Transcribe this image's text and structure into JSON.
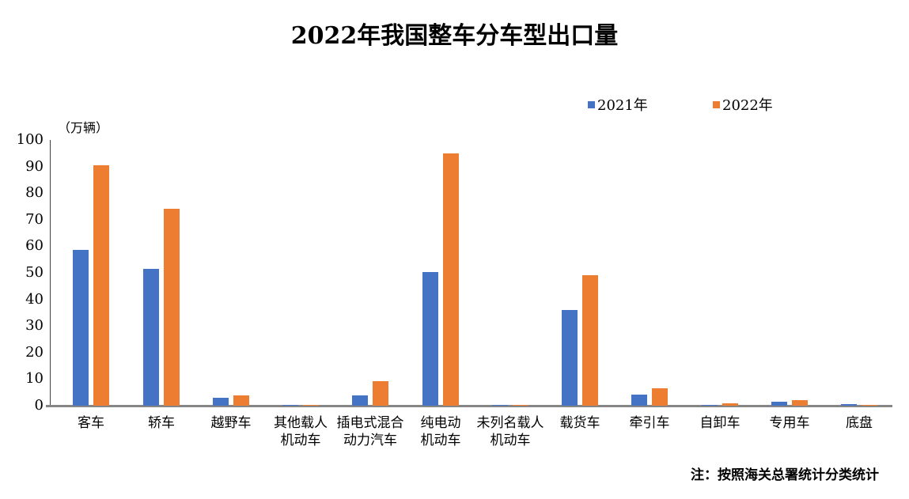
{
  "title": "2022年我国整车分车型出口量",
  "unit_label": "（万辆）",
  "footnote": "注：按照海关总署统计分类统计",
  "colors": {
    "series_2021": "#4472C4",
    "series_2022": "#ED7D31",
    "axis_line": "#404040",
    "baseline": "#868686",
    "text": "#000000",
    "background": "#FFFFFF"
  },
  "legend": [
    {
      "label": "2021年",
      "color": "#4472C4"
    },
    {
      "label": "2022年",
      "color": "#ED7D31"
    }
  ],
  "chart_data": {
    "type": "bar",
    "title": "2022年我国整车分车型出口量",
    "xlabel": "",
    "ylabel": "（万辆）",
    "ylim": [
      0,
      100
    ],
    "ytick_step": 10,
    "yticks": [
      0,
      10,
      20,
      30,
      40,
      50,
      60,
      70,
      80,
      90,
      100
    ],
    "grid": false,
    "legend_position": "top",
    "categories": [
      "客车",
      "轿车",
      "越野车",
      "其他载人\n机动车",
      "插电式混合\n动力汽车",
      "纯电动\n机动车",
      "未列名载人\n机动车",
      "载货车",
      "牵引车",
      "自卸车",
      "专用车",
      "底盘"
    ],
    "series": [
      {
        "name": "2021年",
        "color": "#4472C4",
        "values": [
          58.5,
          51.5,
          3.0,
          0.1,
          4.0,
          50.3,
          0.4,
          36.1,
          4.3,
          0.4,
          1.6,
          0.5
        ]
      },
      {
        "name": "2022年",
        "color": "#ED7D31",
        "values": [
          90.5,
          74.0,
          4.0,
          0.1,
          9.2,
          95.0,
          0.1,
          49.2,
          6.5,
          0.8,
          2.1,
          0.4
        ]
      }
    ]
  }
}
